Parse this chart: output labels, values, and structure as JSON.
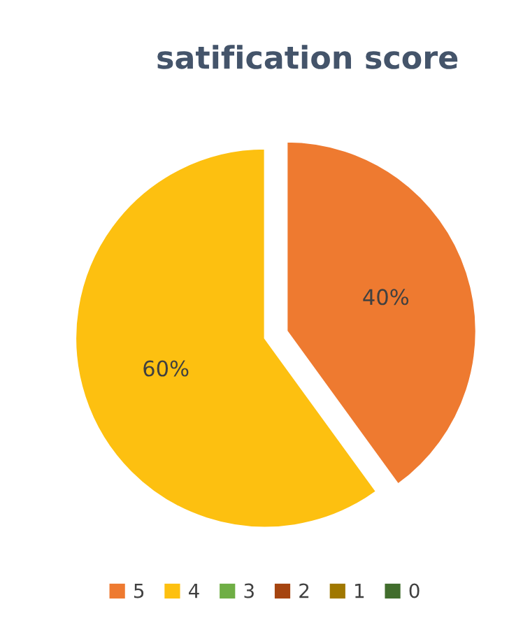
{
  "chart_data": {
    "type": "pie",
    "title": "satification score",
    "categories": [
      "5",
      "4",
      "3",
      "2",
      "1",
      "0"
    ],
    "values": [
      40,
      60,
      0,
      0,
      0,
      0
    ],
    "value_labels": [
      "40%",
      "60%",
      null,
      null,
      null,
      null
    ],
    "colors": [
      "#ee7a30",
      "#fdc010",
      "#6fae45",
      "#a5440f",
      "#a07800",
      "#416d2c"
    ],
    "legend": "bottom"
  }
}
